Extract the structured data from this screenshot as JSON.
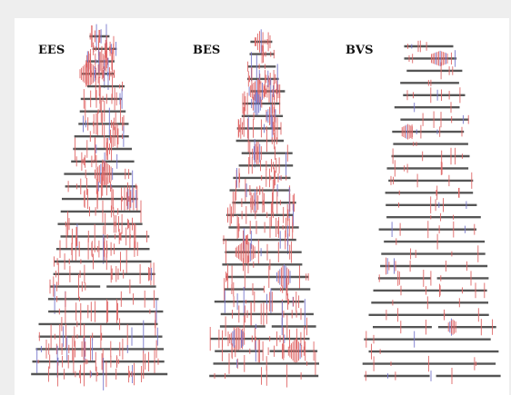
{
  "panels": [
    {
      "label": "EES",
      "rows": 28,
      "seed": 11,
      "density": 1.0
    },
    {
      "label": "BES",
      "rows": 28,
      "seed": 23,
      "density": 0.9
    },
    {
      "label": "BVS",
      "rows": 28,
      "seed": 37,
      "density": 0.35
    }
  ],
  "colors": {
    "bar": "#555555",
    "red_tick": "#e06666",
    "blue_tick": "#7777cc",
    "background": "#ffffff",
    "frame": "#eeeeee"
  }
}
